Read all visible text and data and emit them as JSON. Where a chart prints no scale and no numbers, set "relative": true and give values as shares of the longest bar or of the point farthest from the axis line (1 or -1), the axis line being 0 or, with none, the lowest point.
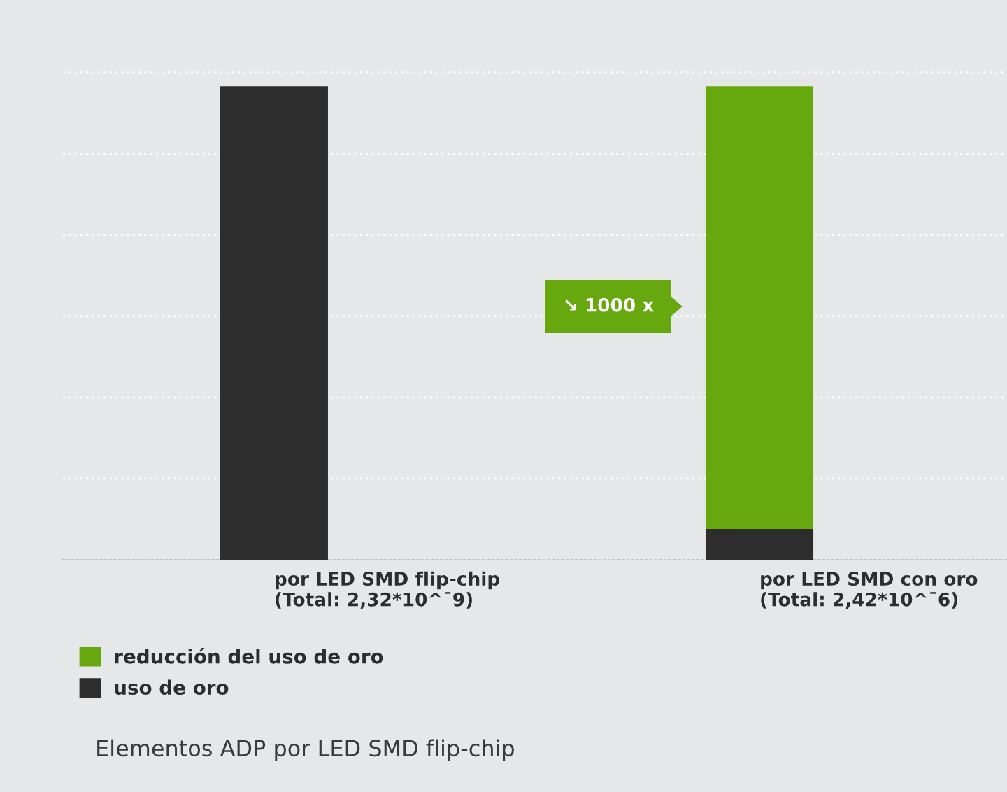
{
  "chart_data": {
    "type": "bar",
    "stacked": true,
    "relative": true,
    "categories": [
      "por LED SMD flip-chip\n(Total: 2,32*10^¯9)",
      "por LED SMD con oro\n(Total: 2,42*10^¯6)"
    ],
    "series": [
      {
        "name": "uso de oro",
        "color": "#2d2d2d",
        "values": [
          1.0,
          0.065
        ]
      },
      {
        "name": "reducción del uso de oro",
        "color": "#67a80e",
        "values": [
          null,
          0.935
        ]
      }
    ],
    "grid": "y",
    "legend": "bottom left",
    "tick_labels": "x",
    "annotations": [
      "↘ 1000 x",
      "Elementos ADP por LED SMD flip-chip"
    ]
  }
}
